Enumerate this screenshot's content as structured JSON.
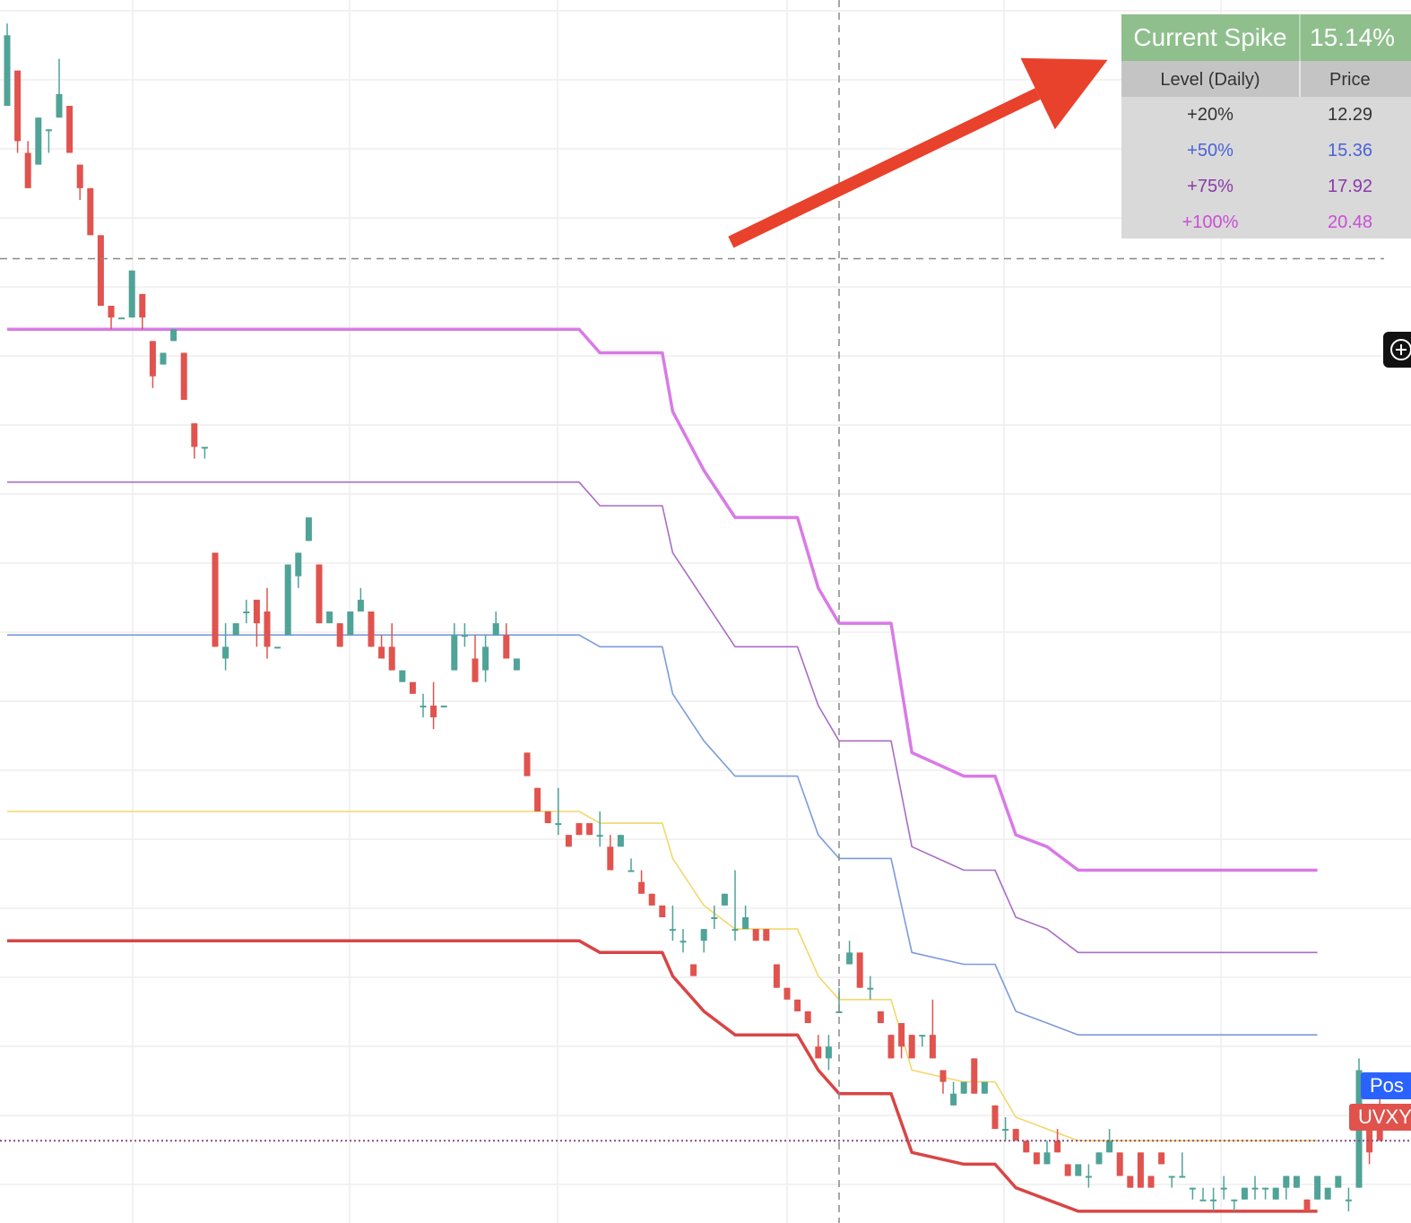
{
  "chart_data": {
    "type": "candlestick",
    "symbol_tag": "UVXY",
    "position_tag": "Pos",
    "colors": {
      "up": "#4fa397",
      "down": "#e0534e",
      "level_20": "#f2d76a",
      "level_50": "#7b9bdc",
      "level_75": "#a96cc5",
      "level_100": "#d97ae6",
      "base": "#d94545",
      "arrow": "#e8412c",
      "grid": "#eeeeee"
    },
    "spike_table": {
      "title": "Current Spike",
      "value": "15.14%",
      "col_level": "Level (Daily)",
      "col_price": "Price",
      "rows": [
        {
          "level": "+20%",
          "price": "12.29",
          "color": "#333333"
        },
        {
          "level": "+50%",
          "price": "15.36",
          "color": "#4a63d8"
        },
        {
          "level": "+75%",
          "price": "17.92",
          "color": "#8a3aa8"
        },
        {
          "level": "+100%",
          "price": "20.48",
          "color": "#c94fd6"
        }
      ]
    },
    "candles": [
      [
        12.3,
        13.0,
        12.3,
        12.9
      ],
      [
        12.6,
        12.6,
        11.9,
        12.0
      ],
      [
        11.9,
        12.0,
        11.6,
        11.6
      ],
      [
        11.8,
        12.2,
        11.8,
        12.2
      ],
      [
        12.1,
        12.1,
        11.9,
        12.1
      ],
      [
        12.2,
        12.7,
        12.2,
        12.4
      ],
      [
        12.3,
        12.3,
        11.9,
        11.9
      ],
      [
        11.8,
        11.8,
        11.5,
        11.6
      ],
      [
        11.6,
        11.6,
        11.2,
        11.2
      ],
      [
        11.2,
        11.2,
        10.6,
        10.6
      ],
      [
        10.6,
        10.6,
        10.4,
        10.5
      ],
      [
        10.5,
        10.5,
        10.5,
        10.5
      ],
      [
        10.5,
        10.9,
        10.5,
        10.9
      ],
      [
        10.7,
        10.7,
        10.4,
        10.5
      ],
      [
        10.3,
        10.3,
        9.9,
        10.0
      ],
      [
        10.1,
        10.2,
        10.1,
        10.2
      ],
      [
        10.3,
        10.4,
        10.3,
        10.4
      ],
      [
        10.2,
        10.2,
        9.8,
        9.8
      ],
      [
        9.6,
        9.6,
        9.3,
        9.4
      ],
      [
        9.4,
        9.4,
        9.3,
        9.4
      ],
      [
        8.5,
        8.5,
        7.7,
        7.7
      ],
      [
        7.6,
        7.9,
        7.5,
        7.7
      ],
      [
        7.8,
        7.9,
        7.8,
        7.9
      ],
      [
        8.0,
        8.1,
        7.9,
        8.0
      ],
      [
        8.1,
        8.1,
        7.7,
        7.9
      ],
      [
        8.0,
        8.2,
        7.6,
        7.7
      ],
      [
        7.7,
        7.7,
        7.7,
        7.7
      ],
      [
        7.8,
        8.4,
        7.8,
        8.4
      ],
      [
        8.3,
        8.5,
        8.2,
        8.5
      ],
      [
        8.6,
        8.8,
        8.6,
        8.8
      ],
      [
        8.4,
        8.4,
        7.9,
        7.9
      ],
      [
        7.9,
        8.0,
        7.9,
        8.0
      ],
      [
        7.9,
        7.9,
        7.7,
        7.7
      ],
      [
        7.8,
        8.0,
        7.8,
        8.0
      ],
      [
        8.0,
        8.2,
        8.0,
        8.1
      ],
      [
        8.0,
        8.0,
        7.7,
        7.7
      ],
      [
        7.7,
        7.8,
        7.6,
        7.6
      ],
      [
        7.7,
        7.9,
        7.5,
        7.5
      ],
      [
        7.4,
        7.5,
        7.4,
        7.5
      ],
      [
        7.4,
        7.4,
        7.3,
        7.3
      ],
      [
        7.2,
        7.3,
        7.1,
        7.2
      ],
      [
        7.2,
        7.4,
        7.0,
        7.1
      ],
      [
        7.2,
        7.2,
        7.2,
        7.2
      ],
      [
        7.5,
        7.9,
        7.5,
        7.8
      ],
      [
        7.8,
        7.9,
        7.7,
        7.8
      ],
      [
        7.6,
        7.8,
        7.4,
        7.4
      ],
      [
        7.5,
        7.8,
        7.4,
        7.7
      ],
      [
        7.8,
        8.0,
        7.8,
        7.9
      ],
      [
        7.8,
        7.9,
        7.6,
        7.6
      ],
      [
        7.5,
        7.6,
        7.5,
        7.6
      ],
      [
        6.8,
        6.8,
        6.6,
        6.6
      ],
      [
        6.5,
        6.5,
        6.3,
        6.3
      ],
      [
        6.3,
        6.3,
        6.2,
        6.2
      ],
      [
        6.2,
        6.5,
        6.1,
        6.2
      ],
      [
        6.1,
        6.1,
        6.0,
        6.0
      ],
      [
        6.2,
        6.2,
        6.1,
        6.1
      ],
      [
        6.2,
        6.2,
        6.1,
        6.1
      ],
      [
        6.1,
        6.3,
        6.0,
        6.1
      ],
      [
        6.0,
        6.1,
        5.8,
        5.8
      ],
      [
        6.0,
        6.1,
        6.0,
        6.1
      ],
      [
        5.8,
        5.9,
        5.8,
        5.8
      ],
      [
        5.7,
        5.8,
        5.6,
        5.6
      ],
      [
        5.6,
        5.6,
        5.5,
        5.5
      ],
      [
        5.5,
        5.5,
        5.4,
        5.4
      ],
      [
        5.3,
        5.5,
        5.2,
        5.3
      ],
      [
        5.2,
        5.3,
        5.1,
        5.2
      ],
      [
        5.0,
        5.0,
        4.9,
        4.9
      ],
      [
        5.2,
        5.3,
        5.1,
        5.3
      ],
      [
        5.4,
        5.5,
        5.3,
        5.4
      ],
      [
        5.5,
        5.6,
        5.5,
        5.6
      ],
      [
        5.3,
        5.8,
        5.2,
        5.3
      ],
      [
        5.3,
        5.5,
        5.3,
        5.4
      ],
      [
        5.3,
        5.3,
        5.2,
        5.2
      ],
      [
        5.3,
        5.3,
        5.2,
        5.2
      ],
      [
        5.0,
        5.0,
        4.8,
        4.8
      ],
      [
        4.8,
        4.8,
        4.7,
        4.7
      ],
      [
        4.7,
        4.7,
        4.6,
        4.6
      ],
      [
        4.6,
        4.6,
        4.5,
        4.5
      ],
      [
        4.3,
        4.4,
        4.2,
        4.2
      ],
      [
        4.2,
        4.4,
        4.1,
        4.3
      ],
      [
        4.6,
        4.8,
        4.6,
        4.6
      ],
      [
        5.0,
        5.2,
        5.0,
        5.1
      ],
      [
        5.1,
        5.1,
        4.8,
        4.8
      ],
      [
        4.8,
        4.9,
        4.7,
        4.8
      ],
      [
        4.6,
        4.6,
        4.5,
        4.5
      ],
      [
        4.4,
        4.4,
        4.2,
        4.2
      ],
      [
        4.5,
        4.5,
        4.2,
        4.3
      ],
      [
        4.4,
        4.4,
        4.2,
        4.2
      ],
      [
        4.4,
        4.4,
        4.3,
        4.4
      ],
      [
        4.4,
        4.7,
        4.2,
        4.2
      ],
      [
        4.1,
        4.1,
        3.9,
        4.0
      ],
      [
        3.8,
        4.0,
        3.8,
        3.9
      ],
      [
        3.9,
        4.0,
        3.9,
        4.0
      ],
      [
        4.2,
        4.2,
        3.9,
        3.9
      ],
      [
        3.9,
        4.0,
        3.9,
        4.0
      ],
      [
        3.8,
        3.8,
        3.6,
        3.6
      ],
      [
        3.6,
        3.7,
        3.5,
        3.6
      ],
      [
        3.6,
        3.6,
        3.5,
        3.5
      ],
      [
        3.5,
        3.5,
        3.4,
        3.4
      ],
      [
        3.4,
        3.4,
        3.3,
        3.3
      ],
      [
        3.3,
        3.5,
        3.3,
        3.4
      ],
      [
        3.5,
        3.6,
        3.4,
        3.4
      ],
      [
        3.3,
        3.3,
        3.2,
        3.2
      ],
      [
        3.2,
        3.3,
        3.2,
        3.3
      ],
      [
        3.2,
        3.3,
        3.1,
        3.2
      ],
      [
        3.3,
        3.4,
        3.3,
        3.4
      ],
      [
        3.4,
        3.6,
        3.4,
        3.5
      ],
      [
        3.4,
        3.4,
        3.2,
        3.2
      ],
      [
        3.2,
        3.2,
        3.1,
        3.1
      ],
      [
        3.4,
        3.4,
        3.1,
        3.1
      ],
      [
        3.2,
        3.2,
        3.1,
        3.1
      ],
      [
        3.4,
        3.4,
        3.3,
        3.3
      ],
      [
        3.2,
        3.2,
        3.1,
        3.2
      ],
      [
        3.2,
        3.4,
        3.2,
        3.2
      ],
      [
        3.1,
        3.1,
        3.0,
        3.1
      ],
      [
        3.0,
        3.1,
        3.0,
        3.0
      ],
      [
        3.0,
        3.1,
        2.9,
        3.0
      ],
      [
        3.1,
        3.2,
        3.0,
        3.1
      ],
      [
        3.0,
        3.0,
        2.9,
        3.0
      ],
      [
        3.0,
        3.1,
        3.0,
        3.1
      ],
      [
        3.1,
        3.2,
        3.0,
        3.1
      ],
      [
        3.1,
        3.1,
        3.0,
        3.1
      ],
      [
        3.0,
        3.1,
        3.0,
        3.1
      ],
      [
        3.1,
        3.2,
        3.0,
        3.2
      ],
      [
        3.1,
        3.2,
        3.1,
        3.2
      ],
      [
        3.0,
        3.0,
        2.9,
        2.9
      ],
      [
        3.0,
        3.2,
        3.0,
        3.2
      ],
      [
        3.0,
        3.1,
        3.0,
        3.1
      ],
      [
        3.1,
        3.2,
        3.1,
        3.2
      ],
      [
        3.0,
        3.1,
        2.9,
        3.0
      ],
      [
        3.1,
        4.2,
        3.1,
        4.1
      ],
      [
        3.6,
        3.6,
        3.3,
        3.4
      ],
      [
        3.7,
        3.9,
        3.5,
        3.5
      ]
    ],
    "levels": {
      "base": [
        [
          0,
          5.2
        ],
        [
          55,
          5.2
        ],
        [
          57,
          5.1
        ],
        [
          60,
          5.1
        ],
        [
          63,
          5.1
        ],
        [
          64,
          4.9
        ],
        [
          67,
          4.6
        ],
        [
          70,
          4.4
        ],
        [
          76,
          4.4
        ],
        [
          78,
          4.1
        ],
        [
          80,
          3.9
        ],
        [
          85,
          3.9
        ],
        [
          87,
          3.4
        ],
        [
          92,
          3.3
        ],
        [
          95,
          3.3
        ],
        [
          97,
          3.1
        ],
        [
          100,
          3.0
        ],
        [
          103,
          2.9
        ],
        [
          126,
          2.9
        ]
      ],
      "level_20": [
        [
          0,
          6.3
        ],
        [
          55,
          6.3
        ],
        [
          57,
          6.2
        ],
        [
          60,
          6.2
        ],
        [
          63,
          6.2
        ],
        [
          64,
          5.9
        ],
        [
          67,
          5.5
        ],
        [
          70,
          5.3
        ],
        [
          76,
          5.3
        ],
        [
          78,
          4.9
        ],
        [
          80,
          4.7
        ],
        [
          85,
          4.7
        ],
        [
          87,
          4.1
        ],
        [
          92,
          4.0
        ],
        [
          95,
          4.0
        ],
        [
          97,
          3.7
        ],
        [
          100,
          3.6
        ],
        [
          103,
          3.5
        ],
        [
          126,
          3.5
        ]
      ],
      "level_50": [
        [
          0,
          7.8
        ],
        [
          55,
          7.8
        ],
        [
          57,
          7.7
        ],
        [
          60,
          7.7
        ],
        [
          63,
          7.7
        ],
        [
          64,
          7.3
        ],
        [
          67,
          6.9
        ],
        [
          70,
          6.6
        ],
        [
          76,
          6.6
        ],
        [
          78,
          6.1
        ],
        [
          80,
          5.9
        ],
        [
          85,
          5.9
        ],
        [
          87,
          5.1
        ],
        [
          92,
          5.0
        ],
        [
          95,
          5.0
        ],
        [
          97,
          4.6
        ],
        [
          100,
          4.5
        ],
        [
          103,
          4.4
        ],
        [
          126,
          4.4
        ]
      ],
      "level_75": [
        [
          0,
          9.1
        ],
        [
          55,
          9.1
        ],
        [
          57,
          8.9
        ],
        [
          60,
          8.9
        ],
        [
          63,
          8.9
        ],
        [
          64,
          8.5
        ],
        [
          67,
          8.1
        ],
        [
          70,
          7.7
        ],
        [
          76,
          7.7
        ],
        [
          78,
          7.2
        ],
        [
          80,
          6.9
        ],
        [
          85,
          6.9
        ],
        [
          87,
          6.0
        ],
        [
          92,
          5.8
        ],
        [
          95,
          5.8
        ],
        [
          97,
          5.4
        ],
        [
          100,
          5.3
        ],
        [
          103,
          5.1
        ],
        [
          126,
          5.1
        ]
      ],
      "level_100": [
        [
          0,
          10.4
        ],
        [
          55,
          10.4
        ],
        [
          57,
          10.2
        ],
        [
          60,
          10.2
        ],
        [
          63,
          10.2
        ],
        [
          64,
          9.7
        ],
        [
          67,
          9.2
        ],
        [
          70,
          8.8
        ],
        [
          76,
          8.8
        ],
        [
          78,
          8.2
        ],
        [
          80,
          7.9
        ],
        [
          85,
          7.9
        ],
        [
          87,
          6.8
        ],
        [
          92,
          6.6
        ],
        [
          95,
          6.6
        ],
        [
          97,
          6.1
        ],
        [
          100,
          6.0
        ],
        [
          103,
          5.8
        ],
        [
          126,
          5.8
        ]
      ]
    },
    "last_price": 3.5,
    "crosshair_price": 11.0,
    "crosshair_index": 80,
    "ylim": [
      2.8,
      13.2
    ],
    "grid": true
  }
}
